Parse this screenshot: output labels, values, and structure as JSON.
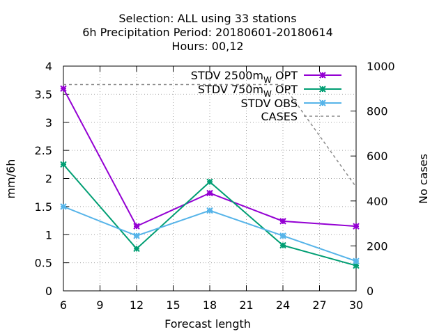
{
  "chart_data": {
    "type": "line",
    "title_lines": [
      "Selection: ALL using    33 stations",
      "6h Precipitation   Period: 20180601-20180614",
      "Hours:  00,12"
    ],
    "xlabel": "Forecast length",
    "ylabel": "mm/6h",
    "y2label": "No cases",
    "xlim": [
      6,
      30
    ],
    "ylim": [
      0,
      4
    ],
    "y2lim": [
      0,
      1000
    ],
    "xticks": [
      6,
      9,
      12,
      15,
      18,
      21,
      24,
      27,
      30
    ],
    "yticks": [
      0,
      0.5,
      1,
      1.5,
      2,
      2.5,
      3,
      3.5,
      4
    ],
    "yticklabels": [
      "0",
      "0.5",
      "1",
      "1.5",
      "2",
      "2.5",
      "3",
      "3.5",
      "4"
    ],
    "y2ticks": [
      0,
      200,
      400,
      600,
      800,
      1000
    ],
    "grid": true,
    "legend_position": "top-right",
    "series": [
      {
        "name": "STDV 2500m",
        "name_sub": "W",
        "name_suffix": " OPT",
        "axis": "y",
        "color": "#9400d3",
        "marker": "x-star",
        "x": [
          6,
          12,
          18,
          24,
          30
        ],
        "values": [
          3.6,
          1.15,
          1.74,
          1.24,
          1.15
        ]
      },
      {
        "name": "STDV 750m",
        "name_sub": "W",
        "name_suffix": " OPT",
        "axis": "y",
        "color": "#009e73",
        "marker": "x-star",
        "x": [
          6,
          12,
          18,
          24,
          30
        ],
        "values": [
          2.25,
          0.75,
          1.94,
          0.81,
          0.45
        ]
      },
      {
        "name": "STDV OBS",
        "name_sub": "",
        "name_suffix": "",
        "axis": "y",
        "color": "#56b4e9",
        "marker": "x-star",
        "x": [
          6,
          12,
          18,
          24,
          30
        ],
        "values": [
          1.5,
          0.98,
          1.43,
          0.98,
          0.53
        ]
      },
      {
        "name": "CASES",
        "name_sub": "",
        "name_suffix": "",
        "axis": "y2",
        "color": "#8a8a8a",
        "marker": "none",
        "dashed": true,
        "x": [
          6,
          12,
          18,
          24,
          30
        ],
        "values": [
          918,
          918,
          918,
          918,
          462
        ]
      }
    ]
  }
}
